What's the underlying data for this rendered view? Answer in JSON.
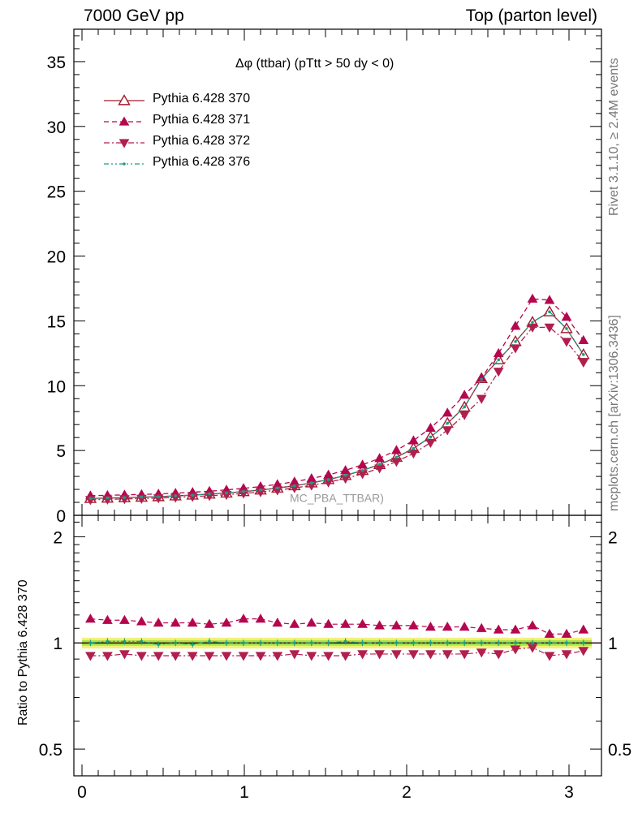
{
  "header": {
    "left": "7000 GeV pp",
    "right": "Top (parton level)"
  },
  "side_text": {
    "rivet": "Rivet 3.1.10, ≥ 2.4M events",
    "mcplots": "mcplots.cern.ch [arXiv:1306.3436]"
  },
  "plot_title": "Δφ (ttbar) (pTtt > 50 dy < 0)",
  "ghost_label": "MC_PBA_TTBAR)",
  "colors": {
    "s370": "#a31a2b",
    "s371": "#b5074e",
    "s372": "#b0204e",
    "s376": "#1a9e87",
    "band_green": "#a8e24a",
    "band_yellow": "#f2f27a"
  },
  "chart_data": [
    {
      "type": "line",
      "panel": "main",
      "ylim": [
        0,
        37.5
      ],
      "xlim": [
        -0.05,
        3.2
      ],
      "x_ticks": [
        0,
        1,
        2,
        3
      ],
      "y_ticks": [
        0,
        5,
        10,
        15,
        20,
        25,
        30,
        35
      ],
      "legend_position": "top-left",
      "x": [
        0.052,
        0.157,
        0.262,
        0.367,
        0.471,
        0.576,
        0.681,
        0.785,
        0.89,
        0.995,
        1.1,
        1.204,
        1.309,
        1.414,
        1.518,
        1.623,
        1.728,
        1.833,
        1.937,
        2.042,
        2.147,
        2.251,
        2.356,
        2.461,
        2.566,
        2.67,
        2.775,
        2.88,
        2.985,
        3.089
      ],
      "series": [
        {
          "name": "Pythia 6.428 370",
          "marker": "open-triangle-up",
          "line": "solid",
          "values": [
            1.3,
            1.33,
            1.36,
            1.4,
            1.44,
            1.5,
            1.56,
            1.64,
            1.72,
            1.83,
            1.95,
            2.1,
            2.28,
            2.5,
            2.76,
            3.07,
            3.46,
            3.92,
            4.48,
            5.16,
            6.05,
            7.1,
            8.35,
            10.55,
            12.0,
            13.4,
            14.9,
            15.7,
            14.4,
            12.4
          ]
        },
        {
          "name": "Pythia 6.428 371",
          "marker": "filled-triangle-up",
          "line": "dashed",
          "values": [
            1.52,
            1.54,
            1.58,
            1.61,
            1.65,
            1.71,
            1.78,
            1.86,
            1.96,
            2.08,
            2.22,
            2.39,
            2.59,
            2.84,
            3.12,
            3.47,
            3.9,
            4.4,
            5.02,
            5.77,
            6.74,
            7.9,
            9.28,
            10.6,
            12.5,
            14.6,
            16.7,
            16.6,
            15.3,
            13.5
          ]
        },
        {
          "name": "Pythia 6.428 372",
          "marker": "filled-triangle-down",
          "line": "dashdot",
          "values": [
            1.2,
            1.23,
            1.26,
            1.29,
            1.33,
            1.38,
            1.44,
            1.51,
            1.59,
            1.69,
            1.8,
            1.94,
            2.11,
            2.31,
            2.55,
            2.84,
            3.2,
            3.63,
            4.15,
            4.78,
            5.6,
            6.58,
            7.75,
            9.0,
            11.1,
            12.9,
            14.5,
            14.5,
            13.4,
            11.8
          ]
        },
        {
          "name": "Pythia 6.428 376",
          "marker": "small-dot",
          "line": "dashdotdot",
          "values": [
            1.3,
            1.34,
            1.37,
            1.41,
            1.43,
            1.5,
            1.55,
            1.66,
            1.72,
            1.84,
            1.95,
            2.11,
            2.27,
            2.5,
            2.75,
            3.09,
            3.46,
            3.93,
            4.48,
            5.15,
            6.04,
            7.1,
            8.36,
            10.5,
            12.0,
            13.4,
            14.9,
            15.7,
            14.4,
            12.4
          ]
        }
      ]
    },
    {
      "type": "line",
      "panel": "ratio",
      "ylabel": "Ratio to Pythia 6.428 370",
      "ylim": [
        0.42,
        2.3
      ],
      "y_scale": "log",
      "y_ticks": [
        0.5,
        1,
        2
      ],
      "xlim": [
        -0.05,
        3.2
      ],
      "x_ticks": [
        0,
        1,
        2,
        3
      ],
      "reference_line": 1.0,
      "series": [
        {
          "name": "Pythia 6.428 371",
          "marker": "filled-triangle-up",
          "line": "dashed",
          "values": [
            1.17,
            1.16,
            1.16,
            1.15,
            1.14,
            1.14,
            1.14,
            1.13,
            1.14,
            1.17,
            1.17,
            1.14,
            1.13,
            1.14,
            1.13,
            1.13,
            1.13,
            1.12,
            1.12,
            1.12,
            1.11,
            1.11,
            1.11,
            1.1,
            1.09,
            1.09,
            1.12,
            1.06,
            1.06,
            1.09
          ]
        },
        {
          "name": "Pythia 6.428 372",
          "marker": "filled-triangle-down",
          "line": "dashdot",
          "values": [
            0.92,
            0.92,
            0.93,
            0.92,
            0.92,
            0.92,
            0.92,
            0.92,
            0.92,
            0.92,
            0.92,
            0.92,
            0.93,
            0.92,
            0.92,
            0.92,
            0.93,
            0.93,
            0.93,
            0.93,
            0.93,
            0.93,
            0.93,
            0.94,
            0.93,
            0.96,
            0.97,
            0.92,
            0.93,
            0.95
          ]
        },
        {
          "name": "Pythia 6.428 376",
          "marker": "small-dot",
          "line": "dashdotdot",
          "values": [
            1.0,
            1.01,
            1.01,
            1.01,
            0.99,
            1.0,
            0.99,
            1.01,
            1.0,
            1.0,
            1.0,
            1.0,
            1.0,
            1.0,
            1.0,
            1.01,
            1.0,
            1.0,
            1.0,
            1.0,
            1.0,
            1.0,
            1.0,
            1.0,
            1.0,
            1.0,
            1.0,
            1.0,
            1.0,
            1.0
          ]
        }
      ]
    }
  ]
}
